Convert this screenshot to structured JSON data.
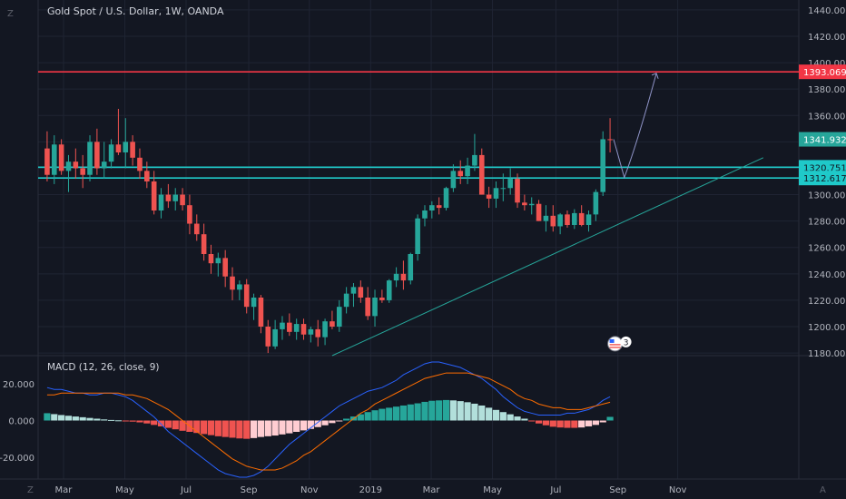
{
  "chart_data": {
    "type": "candlestick",
    "title": "Gold Spot / U.S. Dollar, 1W, OANDA",
    "yaxis": {
      "range": [
        1178,
        1442
      ],
      "ticks": [
        "1180.000",
        "1200.000",
        "1220.000",
        "1240.000",
        "1260.000",
        "1280.000",
        "1300.000",
        "1320.000",
        "1340.000",
        "1360.000",
        "1380.000",
        "1400.000",
        "1420.000",
        "1440.000"
      ]
    },
    "xaxis": {
      "ticks": [
        {
          "label": "Mar",
          "week": 2.8
        },
        {
          "label": "May",
          "week": 11.4
        },
        {
          "label": "Jul",
          "week": 20.0
        },
        {
          "label": "Sep",
          "week": 28.8
        },
        {
          "label": "Nov",
          "week": 37.3
        },
        {
          "label": "2019",
          "week": 45.9
        },
        {
          "label": "Mar",
          "week": 54.4
        },
        {
          "label": "Jul",
          "week": 71.9
        },
        {
          "label": "May",
          "week": 63.0
        },
        {
          "label": "Sep",
          "week": 80.6
        },
        {
          "label": "Nov",
          "week": 89.0
        }
      ]
    },
    "weeks_total": 100,
    "candles": [
      [
        1335,
        1348,
        1310,
        1315
      ],
      [
        1315,
        1345,
        1308,
        1338
      ],
      [
        1338,
        1342,
        1315,
        1318
      ],
      [
        1318,
        1330,
        1302,
        1325
      ],
      [
        1325,
        1335,
        1312,
        1320
      ],
      [
        1320,
        1330,
        1305,
        1315
      ],
      [
        1315,
        1345,
        1310,
        1340
      ],
      [
        1340,
        1350,
        1315,
        1320
      ],
      [
        1320,
        1340,
        1312,
        1325
      ],
      [
        1325,
        1342,
        1320,
        1338
      ],
      [
        1338,
        1365,
        1330,
        1332
      ],
      [
        1332,
        1358,
        1320,
        1340
      ],
      [
        1340,
        1345,
        1322,
        1328
      ],
      [
        1328,
        1335,
        1312,
        1318
      ],
      [
        1318,
        1325,
        1305,
        1310
      ],
      [
        1310,
        1318,
        1285,
        1288
      ],
      [
        1288,
        1305,
        1282,
        1300
      ],
      [
        1300,
        1308,
        1290,
        1295
      ],
      [
        1295,
        1305,
        1288,
        1300
      ],
      [
        1300,
        1305,
        1288,
        1292
      ],
      [
        1292,
        1300,
        1270,
        1278
      ],
      [
        1278,
        1285,
        1265,
        1270
      ],
      [
        1270,
        1278,
        1250,
        1255
      ],
      [
        1255,
        1262,
        1240,
        1248
      ],
      [
        1248,
        1256,
        1238,
        1252
      ],
      [
        1252,
        1258,
        1230,
        1238
      ],
      [
        1238,
        1245,
        1220,
        1228
      ],
      [
        1228,
        1235,
        1220,
        1232
      ],
      [
        1232,
        1236,
        1210,
        1215
      ],
      [
        1215,
        1225,
        1205,
        1222
      ],
      [
        1222,
        1224,
        1195,
        1200
      ],
      [
        1200,
        1205,
        1180,
        1185
      ],
      [
        1185,
        1205,
        1183,
        1198
      ],
      [
        1198,
        1208,
        1190,
        1203
      ],
      [
        1203,
        1210,
        1193,
        1196
      ],
      [
        1196,
        1206,
        1190,
        1202
      ],
      [
        1202,
        1206,
        1190,
        1194
      ],
      [
        1194,
        1200,
        1188,
        1198
      ],
      [
        1198,
        1205,
        1185,
        1192
      ],
      [
        1192,
        1206,
        1186,
        1204
      ],
      [
        1204,
        1212,
        1198,
        1200
      ],
      [
        1200,
        1220,
        1196,
        1215
      ],
      [
        1215,
        1230,
        1210,
        1225
      ],
      [
        1225,
        1233,
        1215,
        1230
      ],
      [
        1230,
        1235,
        1218,
        1222
      ],
      [
        1222,
        1230,
        1205,
        1208
      ],
      [
        1208,
        1228,
        1200,
        1222
      ],
      [
        1222,
        1228,
        1218,
        1220
      ],
      [
        1220,
        1236,
        1218,
        1235
      ],
      [
        1235,
        1245,
        1230,
        1240
      ],
      [
        1240,
        1250,
        1228,
        1235
      ],
      [
        1235,
        1256,
        1232,
        1255
      ],
      [
        1255,
        1285,
        1250,
        1282
      ],
      [
        1282,
        1292,
        1276,
        1288
      ],
      [
        1288,
        1295,
        1282,
        1292
      ],
      [
        1292,
        1298,
        1285,
        1290
      ],
      [
        1290,
        1306,
        1288,
        1305
      ],
      [
        1305,
        1323,
        1302,
        1318
      ],
      [
        1318,
        1326,
        1308,
        1314
      ],
      [
        1314,
        1328,
        1308,
        1322
      ],
      [
        1322,
        1346,
        1318,
        1330
      ],
      [
        1330,
        1335,
        1300,
        1300
      ],
      [
        1300,
        1306,
        1290,
        1297
      ],
      [
        1297,
        1310,
        1290,
        1305
      ],
      [
        1305,
        1316,
        1295,
        1305
      ],
      [
        1305,
        1320,
        1300,
        1312
      ],
      [
        1312,
        1316,
        1290,
        1294
      ],
      [
        1294,
        1300,
        1288,
        1292
      ],
      [
        1292,
        1298,
        1285,
        1293
      ],
      [
        1293,
        1296,
        1280,
        1280
      ],
      [
        1280,
        1292,
        1272,
        1284
      ],
      [
        1284,
        1292,
        1272,
        1276
      ],
      [
        1276,
        1286,
        1270,
        1285
      ],
      [
        1285,
        1288,
        1275,
        1277
      ],
      [
        1277,
        1289,
        1274,
        1286
      ],
      [
        1286,
        1292,
        1276,
        1277
      ],
      [
        1277,
        1288,
        1272,
        1285
      ],
      [
        1285,
        1304,
        1280,
        1302
      ],
      [
        1302,
        1348,
        1299,
        1342
      ],
      [
        1342,
        1358,
        1332,
        1341.93
      ]
    ],
    "hlines": [
      {
        "price": 1393.069,
        "label": "1393.069",
        "color": "#f23645"
      },
      {
        "price": 1320.751,
        "label": "1320.751",
        "color": "#1fc9c9"
      },
      {
        "price": 1312.617,
        "label": "1312.617",
        "color": "#1fc9c9"
      }
    ],
    "last_price": {
      "price": 1341.932,
      "label": "1341.932",
      "color": "#26a69a"
    },
    "trendline": {
      "from": [
        40.5,
        1178
      ],
      "to": [
        101,
        1328
      ],
      "color": "#26a69a"
    },
    "projection": {
      "points": [
        [
          80,
          1342
        ],
        [
          81.5,
          1313
        ],
        [
          86,
          1392
        ]
      ],
      "color": "#8f94c8"
    },
    "events_badge": {
      "week": 80.2,
      "price": 1187,
      "count": "3"
    },
    "macd": {
      "label": "MACD (12, 26, close, 9)",
      "range": [
        -30,
        30
      ],
      "ticks": [
        "20.000",
        "0.000",
        "-20.000"
      ],
      "macd_color": "#2962ff",
      "signal_color": "#ff6d00",
      "histogram": [
        4.0,
        3.5,
        3.0,
        2.6,
        2.2,
        1.8,
        1.4,
        1.0,
        0.6,
        0.3,
        0.1,
        -0.2,
        -0.6,
        -1.0,
        -1.6,
        -2.4,
        -3.2,
        -4.0,
        -4.8,
        -5.6,
        -6.2,
        -6.8,
        -7.4,
        -8.0,
        -8.6,
        -9.0,
        -9.4,
        -9.8,
        -10.0,
        -9.6,
        -9.0,
        -8.6,
        -8.2,
        -7.6,
        -7.0,
        -6.2,
        -5.4,
        -4.6,
        -3.6,
        -2.6,
        -1.4,
        -0.2,
        1.0,
        2.2,
        3.4,
        4.6,
        5.6,
        6.4,
        7.0,
        7.6,
        8.2,
        8.8,
        9.4,
        10.2,
        10.8,
        11.0,
        11.2,
        11.0,
        10.6,
        10.0,
        9.2,
        8.2,
        7.0,
        5.8,
        4.6,
        3.4,
        2.2,
        1.0,
        -0.4,
        -1.6,
        -2.6,
        -3.4,
        -3.8,
        -4.0,
        -4.0,
        -3.8,
        -3.2,
        -2.4,
        -1.0,
        2.0
      ],
      "macd_line": [
        18,
        17,
        17,
        16,
        15,
        15,
        14,
        14,
        15,
        15,
        14,
        13,
        11,
        8,
        5,
        2,
        -2,
        -6,
        -9,
        -12,
        -15,
        -18,
        -21,
        -24,
        -27,
        -29,
        -30,
        -31,
        -31,
        -30,
        -28,
        -25,
        -21,
        -17,
        -13,
        -10,
        -7,
        -4,
        -1,
        2,
        5,
        8,
        10,
        12,
        14,
        16,
        17,
        18,
        20,
        22,
        25,
        27,
        29,
        31,
        32,
        32,
        31,
        30,
        29,
        27,
        25,
        23,
        20,
        17,
        13,
        10,
        7,
        5,
        4,
        3,
        3,
        3,
        3,
        4,
        4,
        5,
        6,
        8,
        11,
        13
      ],
      "signal_line": [
        14,
        14,
        15,
        15,
        15,
        15,
        15,
        15,
        15,
        15,
        15,
        14,
        14,
        13,
        12,
        10,
        8,
        6,
        3,
        0,
        -3,
        -6,
        -9,
        -12,
        -15,
        -18,
        -21,
        -23,
        -25,
        -26,
        -27,
        -27,
        -27,
        -26,
        -24,
        -22,
        -19,
        -17,
        -14,
        -11,
        -8,
        -5,
        -2,
        1,
        4,
        6,
        9,
        11,
        13,
        15,
        17,
        19,
        21,
        23,
        24,
        25,
        26,
        26,
        26,
        26,
        25,
        24,
        23,
        21,
        19,
        17,
        14,
        12,
        11,
        9,
        8,
        7,
        7,
        6,
        6,
        6,
        7,
        8,
        9,
        10
      ]
    }
  },
  "ui": {
    "scale_mode_label": "A",
    "z_label": "Z",
    "badge_flag": "us-flag-icon"
  }
}
